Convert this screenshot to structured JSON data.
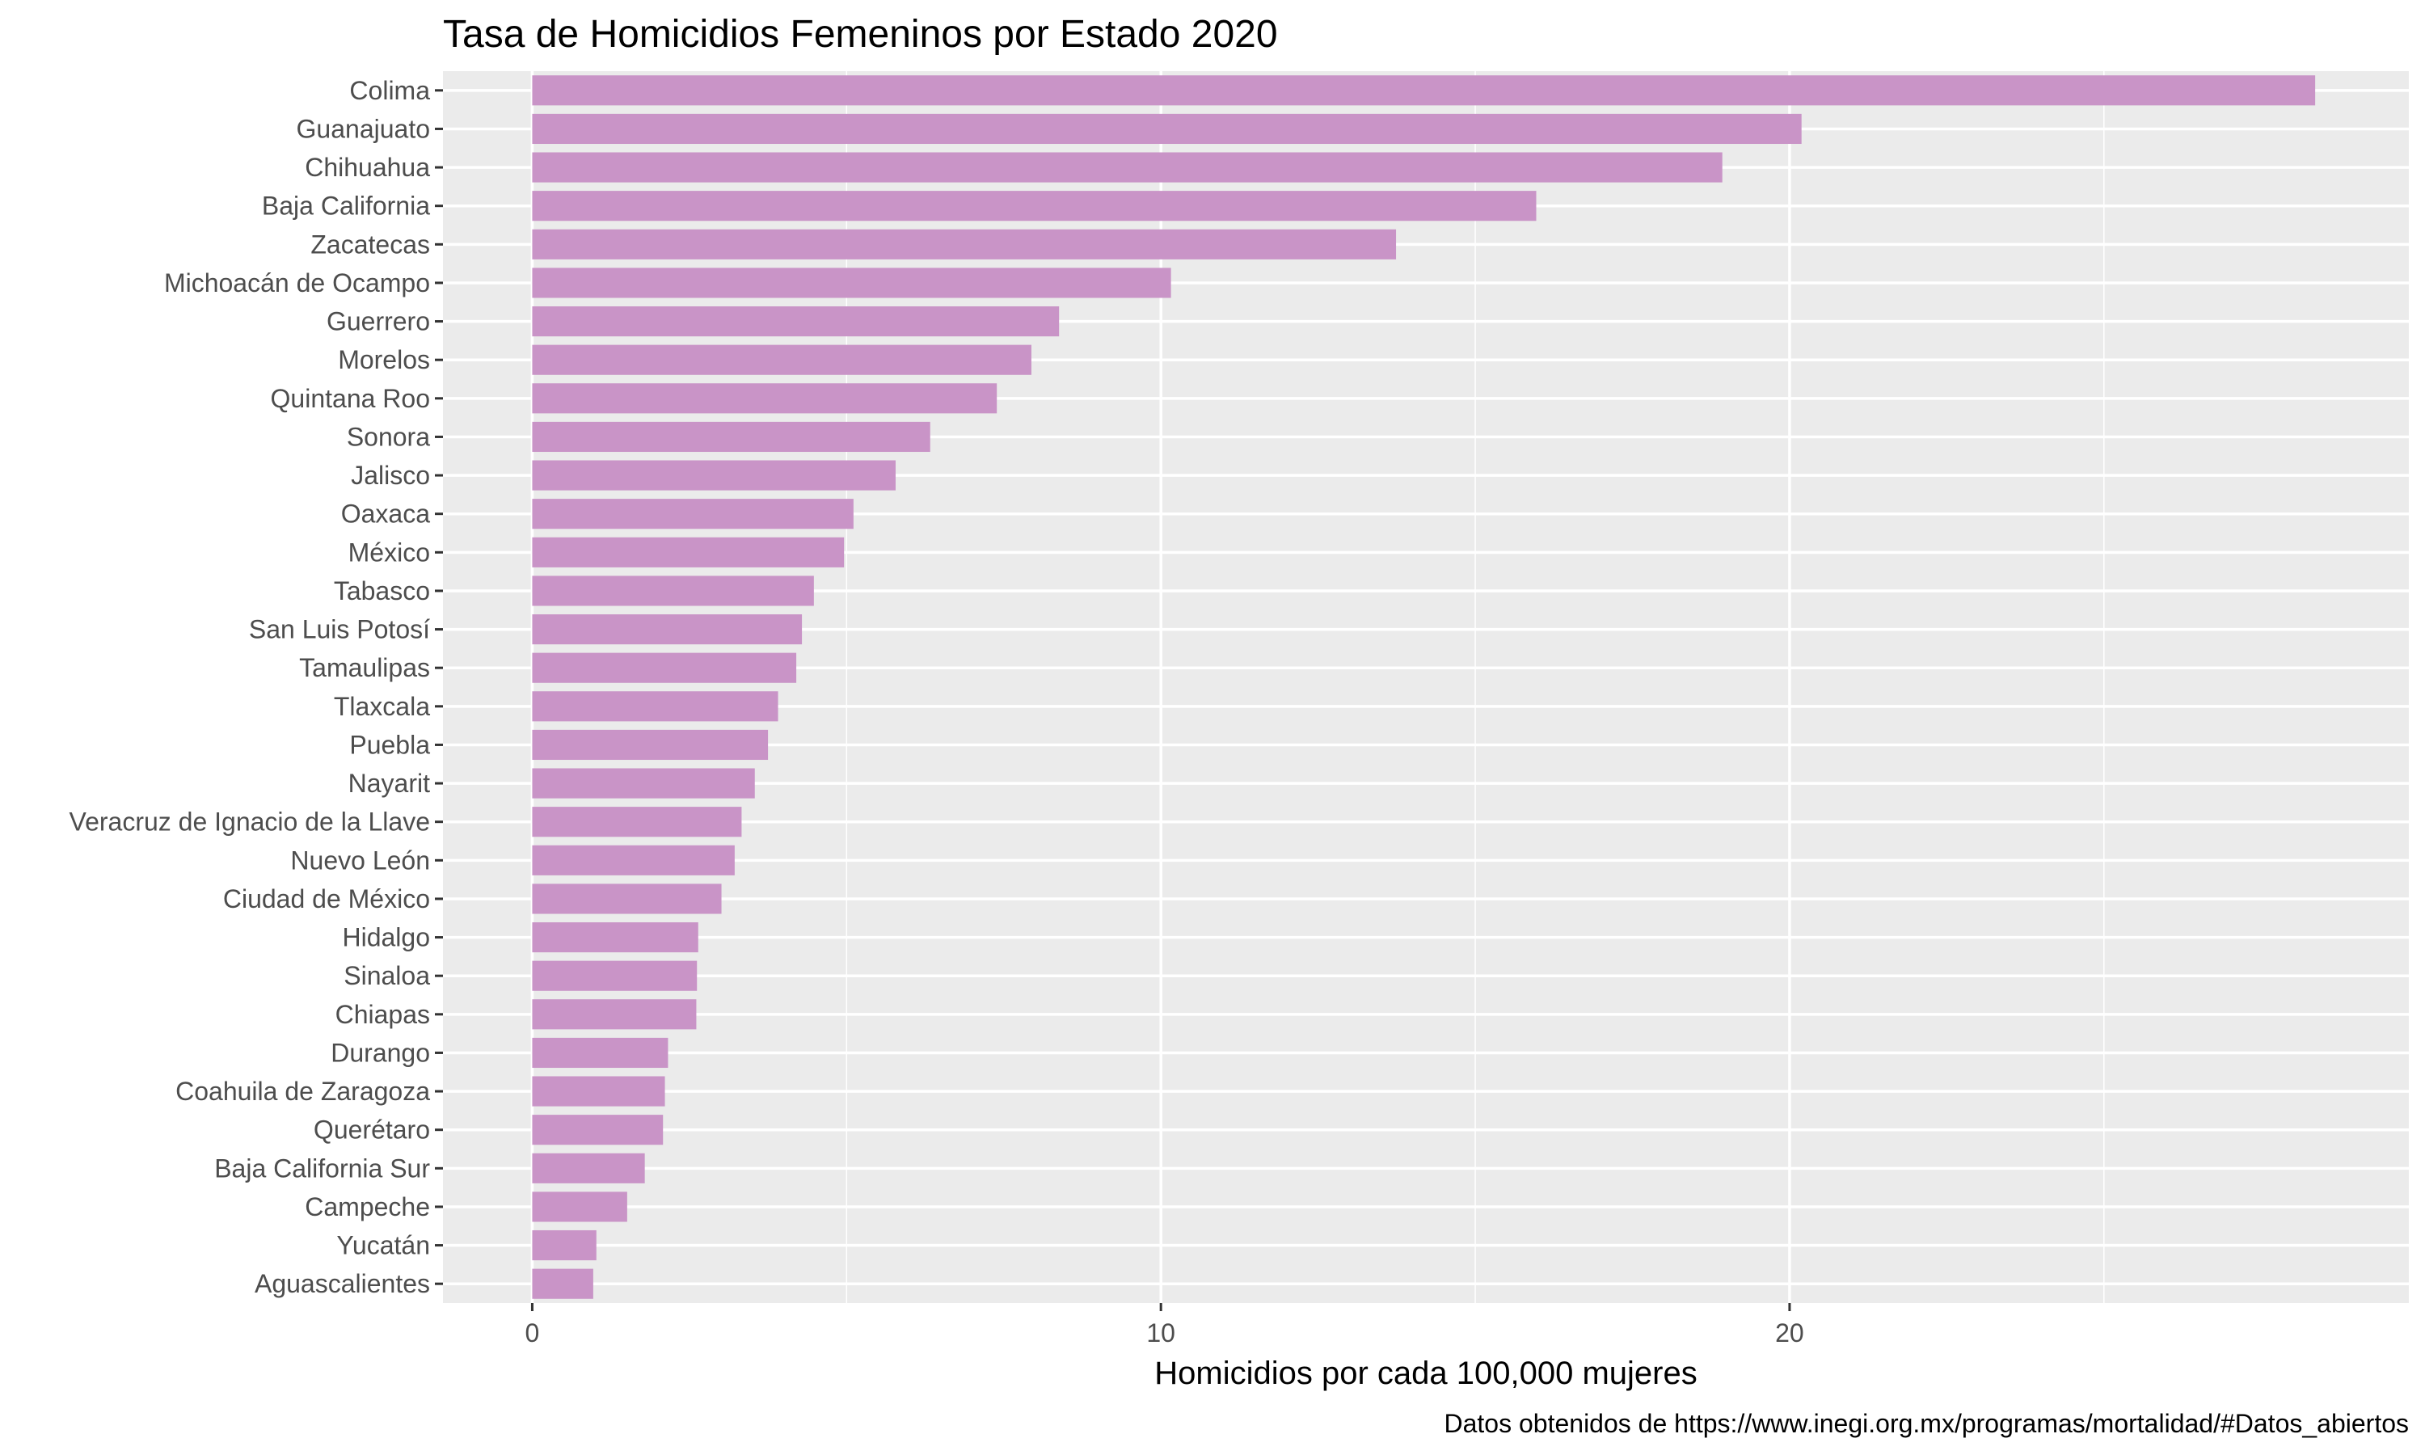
{
  "chart_data": {
    "type": "bar",
    "orientation": "horizontal",
    "title": "Tasa de Homicidios Femeninos por Estado 2020",
    "xlabel": "Homicidios por cada 100,000 mujeres",
    "ylabel": "",
    "caption": "Datos obtenidos de https://www.inegi.org.mx/programas/mortalidad/#Datos_abiertos",
    "bar_color": "#c994c7",
    "panel_color": "#ebebeb",
    "grid": true,
    "xlim": [
      -1.42,
      29.85
    ],
    "xticks": [
      0,
      10,
      20
    ],
    "categories": [
      "Colima",
      "Guanajuato",
      "Chihuahua",
      "Baja California",
      "Zacatecas",
      "Michoacán de Ocampo",
      "Guerrero",
      "Morelos",
      "Quintana Roo",
      "Sonora",
      "Jalisco",
      "Oaxaca",
      "México",
      "Tabasco",
      "San Luis Potosí",
      "Tamaulipas",
      "Tlaxcala",
      "Puebla",
      "Nayarit",
      "Veracruz de Ignacio de la Llave",
      "Nuevo León",
      "Ciudad de México",
      "Hidalgo",
      "Sinaloa",
      "Chiapas",
      "Durango",
      "Coahuila de Zaragoza",
      "Querétaro",
      "Baja California Sur",
      "Campeche",
      "Yucatán",
      "Aguascalientes"
    ],
    "values": [
      28.36,
      20.19,
      18.93,
      15.97,
      13.74,
      10.16,
      8.38,
      7.94,
      7.39,
      6.33,
      5.78,
      5.11,
      4.96,
      4.48,
      4.29,
      4.2,
      3.91,
      3.75,
      3.54,
      3.33,
      3.22,
      3.01,
      2.64,
      2.62,
      2.61,
      2.16,
      2.11,
      2.08,
      1.79,
      1.51,
      1.02,
      0.97
    ]
  }
}
